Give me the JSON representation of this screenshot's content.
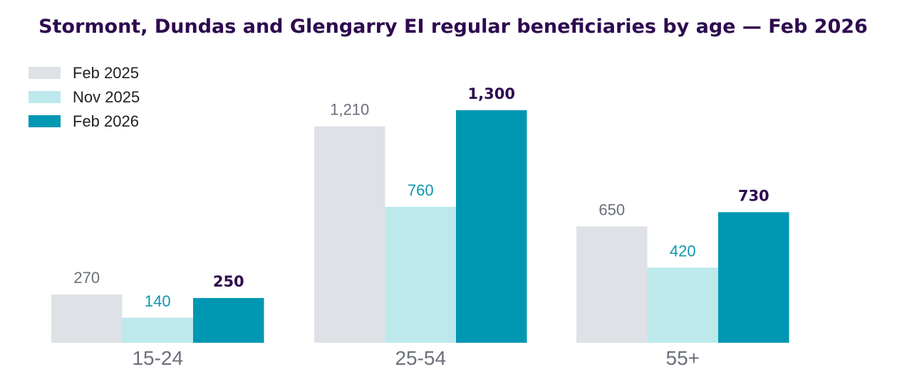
{
  "chart_data": {
    "type": "bar",
    "title": "Stormont, Dundas and Glengarry EI regular beneficiaries by age — Feb 2026",
    "categories": [
      "15-24",
      "25-54",
      "55+"
    ],
    "series": [
      {
        "name": "Feb 2025",
        "values": [
          270,
          1210,
          650
        ],
        "labels": [
          "270",
          "1,210",
          "650"
        ],
        "color": "#dee1e6",
        "label_color": "#6b6f7a",
        "bold": false
      },
      {
        "name": "Nov 2025",
        "values": [
          140,
          760,
          420
        ],
        "labels": [
          "140",
          "760",
          "420"
        ],
        "color": "#bde9ec",
        "label_color": "#0e97ae",
        "bold": false
      },
      {
        "name": "Feb 2026",
        "values": [
          250,
          1300,
          730
        ],
        "labels": [
          "250",
          "1,300",
          "730"
        ],
        "color": "#0097b2",
        "label_color": "#2e0a4f",
        "bold": true
      }
    ],
    "ylim": [
      0,
      1300
    ],
    "grid": false,
    "legend_position": "top-left"
  }
}
